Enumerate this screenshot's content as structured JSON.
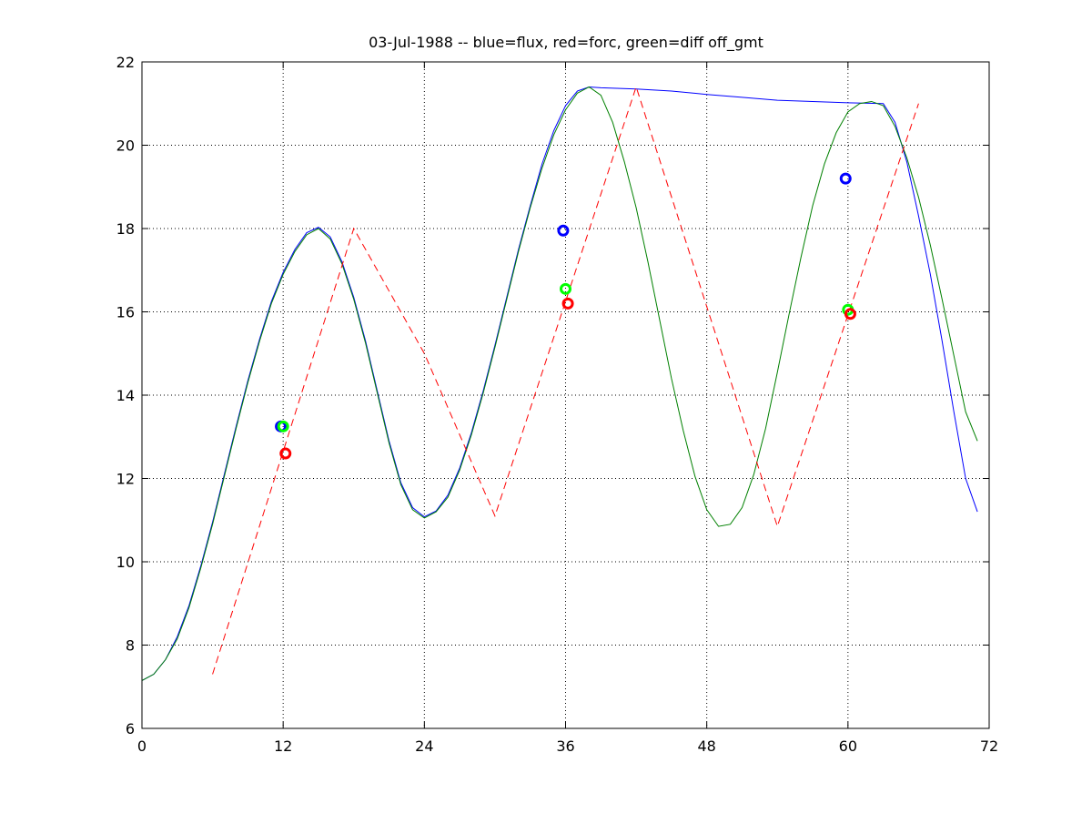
{
  "chart_data": {
    "type": "line",
    "title": "03-Jul-1988 -- blue=flux, red=forc, green=diff off_gmt",
    "xlabel": "",
    "ylabel": "",
    "xlim": [
      0,
      72
    ],
    "ylim": [
      6,
      22
    ],
    "xticks": [
      0,
      12,
      24,
      36,
      48,
      60,
      72
    ],
    "yticks": [
      6,
      8,
      10,
      12,
      14,
      16,
      18,
      20,
      22
    ],
    "grid": true,
    "colors": {
      "blue": "#0000ff",
      "red": "#ff0000",
      "green": "#008000",
      "green_marker": "#00ff00"
    },
    "series": [
      {
        "color": "blue",
        "style": "solid",
        "x": [
          0,
          1,
          2,
          3,
          4,
          5,
          6,
          7,
          8,
          9,
          10,
          11,
          12,
          13,
          14,
          15,
          16,
          17,
          18,
          19,
          20,
          21,
          22,
          23,
          24,
          25,
          26,
          27,
          28,
          29,
          30,
          31,
          32,
          33,
          34,
          35,
          36,
          37,
          38,
          39,
          42,
          45,
          48,
          51,
          54,
          57,
          60,
          63,
          64,
          65,
          66,
          67,
          68,
          69,
          70,
          71
        ],
        "y": [
          7.15,
          7.3,
          7.65,
          8.2,
          8.95,
          9.9,
          10.95,
          12.1,
          13.25,
          14.35,
          15.35,
          16.25,
          16.95,
          17.5,
          17.9,
          18.03,
          17.8,
          17.2,
          16.35,
          15.3,
          14.1,
          12.9,
          11.9,
          11.3,
          11.08,
          11.22,
          11.6,
          12.25,
          13.1,
          14.1,
          15.2,
          16.35,
          17.5,
          18.55,
          19.55,
          20.35,
          20.95,
          21.3,
          21.4,
          21.38,
          21.35,
          21.3,
          21.22,
          21.15,
          21.08,
          21.05,
          21.02,
          21.0,
          20.55,
          19.6,
          18.3,
          16.9,
          15.3,
          13.6,
          12.0,
          11.2
        ]
      },
      {
        "color": "green",
        "style": "solid",
        "x": [
          0,
          1,
          2,
          3,
          4,
          5,
          6,
          7,
          8,
          9,
          10,
          11,
          12,
          13,
          14,
          15,
          16,
          17,
          18,
          19,
          20,
          21,
          22,
          23,
          24,
          25,
          26,
          27,
          28,
          29,
          30,
          31,
          32,
          33,
          34,
          35,
          36,
          37,
          38,
          39,
          40,
          41,
          42,
          43,
          44,
          45,
          46,
          47,
          48,
          49,
          50,
          51,
          52,
          53,
          54,
          55,
          56,
          57,
          58,
          59,
          60,
          61,
          62,
          63,
          64,
          65,
          66,
          67,
          68,
          69,
          70,
          71
        ],
        "y": [
          7.15,
          7.3,
          7.65,
          8.15,
          8.9,
          9.85,
          10.9,
          12.05,
          13.2,
          14.3,
          15.3,
          16.2,
          16.9,
          17.45,
          17.85,
          18.0,
          17.75,
          17.15,
          16.3,
          15.25,
          14.05,
          12.85,
          11.85,
          11.25,
          11.05,
          11.2,
          11.55,
          12.2,
          13.05,
          14.05,
          15.15,
          16.3,
          17.45,
          18.5,
          19.45,
          20.25,
          20.85,
          21.25,
          21.4,
          21.2,
          20.55,
          19.6,
          18.5,
          17.2,
          15.8,
          14.4,
          13.15,
          12.05,
          11.25,
          10.85,
          10.9,
          11.3,
          12.1,
          13.2,
          14.55,
          15.95,
          17.3,
          18.55,
          19.55,
          20.3,
          20.8,
          21.0,
          21.05,
          20.95,
          20.45,
          19.7,
          18.75,
          17.6,
          16.3,
          14.95,
          13.6,
          12.9
        ]
      },
      {
        "color": "red",
        "style": "dashed",
        "x": [
          6,
          18,
          24,
          30,
          42,
          54,
          66
        ],
        "y": [
          7.3,
          18.0,
          15.0,
          11.1,
          21.4,
          10.85,
          21.0
        ]
      }
    ],
    "markers": [
      {
        "color": "blue",
        "x": 11.8,
        "y": 13.25
      },
      {
        "color": "green_marker",
        "x": 12.0,
        "y": 13.25
      },
      {
        "color": "red",
        "x": 12.2,
        "y": 12.6
      },
      {
        "color": "blue",
        "x": 35.8,
        "y": 17.95
      },
      {
        "color": "green_marker",
        "x": 36.0,
        "y": 16.55
      },
      {
        "color": "red",
        "x": 36.2,
        "y": 16.2
      },
      {
        "color": "blue",
        "x": 59.8,
        "y": 19.2
      },
      {
        "color": "green_marker",
        "x": 60.0,
        "y": 16.05
      },
      {
        "color": "red",
        "x": 60.2,
        "y": 15.95
      }
    ]
  }
}
